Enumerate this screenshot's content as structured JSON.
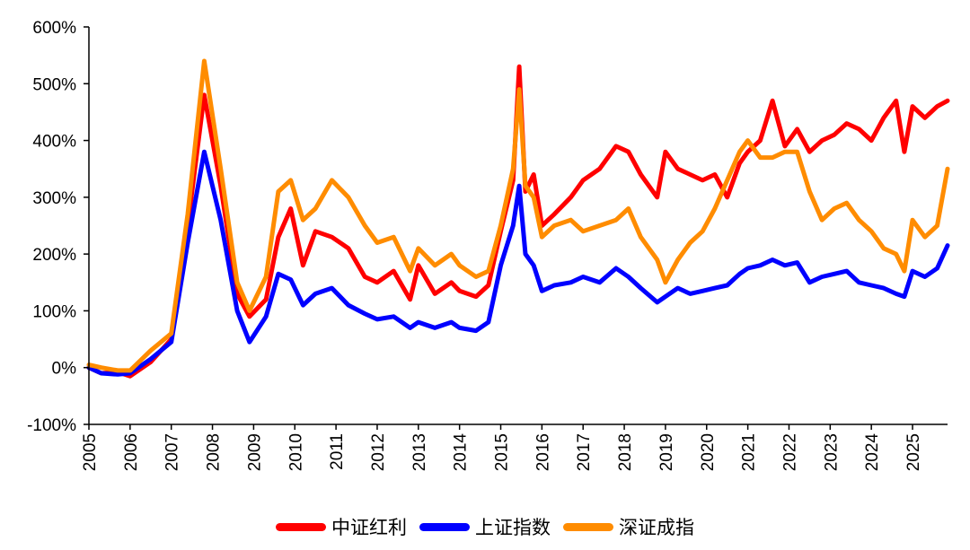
{
  "chart_data": {
    "type": "line",
    "title": "",
    "xlabel": "",
    "ylabel": "",
    "ylim": [
      -100,
      600
    ],
    "xlim": [
      2005,
      2025.85
    ],
    "y_ticks": [
      "-100%",
      "0%",
      "100%",
      "200%",
      "300%",
      "400%",
      "500%",
      "600%"
    ],
    "x_ticks": [
      "2005",
      "2006",
      "2007",
      "2008",
      "2009",
      "2010",
      "2011",
      "2012",
      "2013",
      "2014",
      "2015",
      "2016",
      "2017",
      "2018",
      "2019",
      "2020",
      "2021",
      "2022",
      "2023",
      "2024",
      "2025"
    ],
    "legend_position": "bottom-center",
    "series": [
      {
        "name": "中证红利",
        "color": "#ff0000",
        "x": [
          2005,
          2005.3,
          2005.7,
          2006,
          2006.5,
          2007,
          2007.4,
          2007.8,
          2008.2,
          2008.6,
          2008.9,
          2009.3,
          2009.6,
          2009.9,
          2010.2,
          2010.5,
          2010.9,
          2011.3,
          2011.7,
          2012,
          2012.4,
          2012.8,
          2013,
          2013.4,
          2013.8,
          2014,
          2014.4,
          2014.7,
          2015,
          2015.3,
          2015.45,
          2015.6,
          2015.8,
          2016,
          2016.3,
          2016.7,
          2017,
          2017.4,
          2017.8,
          2018.1,
          2018.4,
          2018.8,
          2019,
          2019.3,
          2019.6,
          2019.9,
          2020.2,
          2020.5,
          2020.8,
          2021,
          2021.3,
          2021.6,
          2021.9,
          2022.2,
          2022.5,
          2022.8,
          2023.1,
          2023.4,
          2023.7,
          2024,
          2024.3,
          2024.6,
          2024.8,
          2025,
          2025.3,
          2025.6,
          2025.85
        ],
        "values": [
          0,
          -10,
          -8,
          -15,
          10,
          50,
          250,
          480,
          320,
          130,
          90,
          120,
          230,
          280,
          180,
          240,
          230,
          210,
          160,
          150,
          170,
          120,
          180,
          130,
          150,
          135,
          125,
          145,
          240,
          330,
          530,
          310,
          340,
          250,
          270,
          300,
          330,
          350,
          390,
          380,
          340,
          300,
          380,
          350,
          340,
          330,
          340,
          300,
          360,
          380,
          400,
          470,
          390,
          420,
          380,
          400,
          410,
          430,
          420,
          400,
          440,
          470,
          380,
          460,
          440,
          460,
          470
        ]
      },
      {
        "name": "上证指数",
        "color": "#0000ff",
        "x": [
          2005,
          2005.3,
          2005.7,
          2006,
          2006.5,
          2007,
          2007.4,
          2007.8,
          2008.2,
          2008.6,
          2008.9,
          2009.3,
          2009.6,
          2009.9,
          2010.2,
          2010.5,
          2010.9,
          2011.3,
          2011.7,
          2012,
          2012.4,
          2012.8,
          2013,
          2013.4,
          2013.8,
          2014,
          2014.4,
          2014.7,
          2015,
          2015.3,
          2015.45,
          2015.6,
          2015.8,
          2016,
          2016.3,
          2016.7,
          2017,
          2017.4,
          2017.8,
          2018.1,
          2018.4,
          2018.8,
          2019,
          2019.3,
          2019.6,
          2019.9,
          2020.2,
          2020.5,
          2020.8,
          2021,
          2021.3,
          2021.6,
          2021.9,
          2022.2,
          2022.5,
          2022.8,
          2023.1,
          2023.4,
          2023.7,
          2024,
          2024.3,
          2024.6,
          2024.8,
          2025,
          2025.3,
          2025.6,
          2025.85
        ],
        "values": [
          0,
          -10,
          -12,
          -10,
          15,
          45,
          220,
          380,
          260,
          100,
          45,
          90,
          165,
          155,
          110,
          130,
          140,
          110,
          95,
          85,
          90,
          70,
          80,
          70,
          80,
          70,
          65,
          80,
          180,
          250,
          320,
          200,
          180,
          135,
          145,
          150,
          160,
          150,
          175,
          160,
          140,
          115,
          125,
          140,
          130,
          135,
          140,
          145,
          165,
          175,
          180,
          190,
          180,
          185,
          150,
          160,
          165,
          170,
          150,
          145,
          140,
          130,
          125,
          170,
          160,
          175,
          215
        ]
      },
      {
        "name": "深证成指",
        "color": "#ff8c00",
        "x": [
          2005,
          2005.3,
          2005.7,
          2006,
          2006.5,
          2007,
          2007.4,
          2007.8,
          2008.2,
          2008.6,
          2008.9,
          2009.3,
          2009.6,
          2009.9,
          2010.2,
          2010.5,
          2010.9,
          2011.3,
          2011.7,
          2012,
          2012.4,
          2012.8,
          2013,
          2013.4,
          2013.8,
          2014,
          2014.4,
          2014.7,
          2015,
          2015.3,
          2015.45,
          2015.6,
          2015.8,
          2016,
          2016.3,
          2016.7,
          2017,
          2017.4,
          2017.8,
          2018.1,
          2018.4,
          2018.8,
          2019,
          2019.3,
          2019.6,
          2019.9,
          2020.2,
          2020.5,
          2020.8,
          2021,
          2021.3,
          2021.6,
          2021.9,
          2022.2,
          2022.5,
          2022.8,
          2023.1,
          2023.4,
          2023.7,
          2024,
          2024.3,
          2024.6,
          2024.8,
          2025,
          2025.3,
          2025.6,
          2025.85
        ],
        "values": [
          5,
          0,
          -5,
          -5,
          30,
          60,
          270,
          540,
          350,
          150,
          100,
          160,
          310,
          330,
          260,
          280,
          330,
          300,
          250,
          220,
          230,
          170,
          210,
          180,
          200,
          180,
          160,
          170,
          250,
          350,
          490,
          320,
          300,
          230,
          250,
          260,
          240,
          250,
          260,
          280,
          230,
          190,
          150,
          190,
          220,
          240,
          280,
          330,
          380,
          400,
          370,
          370,
          380,
          380,
          310,
          260,
          280,
          290,
          260,
          240,
          210,
          200,
          170,
          260,
          230,
          250,
          350
        ]
      }
    ]
  }
}
